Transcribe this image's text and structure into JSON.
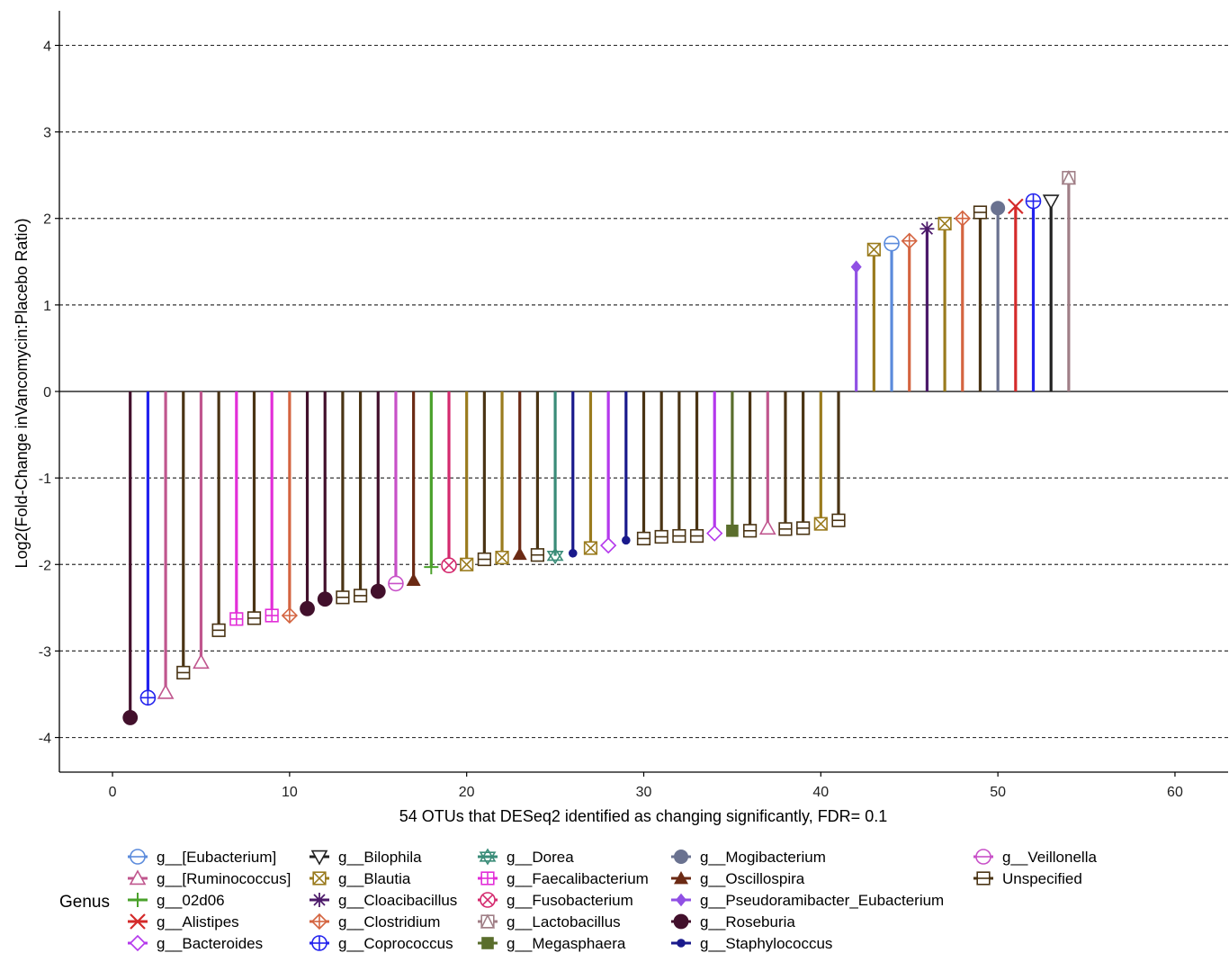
{
  "chart_data": {
    "type": "lollipop",
    "xlabel": "54 OTUs that DESeq2 identified as changing significantly, FDR= 0.1",
    "ylabel": "Log2(Fold-Change inVancomycin:Placebo Ratio)",
    "xlim": [
      -3,
      63
    ],
    "ylim": [
      -4.4,
      4.4
    ],
    "xticks": [
      0,
      10,
      20,
      30,
      40,
      50,
      60
    ],
    "yticks": [
      -4,
      -3,
      -2,
      -1,
      0,
      1,
      2,
      3,
      4
    ],
    "grid": "dashed horizontal",
    "legend_title": "Genus",
    "legend_position": "bottom",
    "genera": [
      {
        "label": "g__[Eubacterium]",
        "color": "#5b8bdc",
        "shape": "circle-minus"
      },
      {
        "label": "g__[Ruminococcus]",
        "color": "#c0568e",
        "shape": "triangle-up-open"
      },
      {
        "label": "g__02d06",
        "color": "#4aa12b",
        "shape": "plus"
      },
      {
        "label": "g__Alistipes",
        "color": "#d42a2a",
        "shape": "cross"
      },
      {
        "label": "g__Bacteroides",
        "color": "#b438ec",
        "shape": "diamond-open"
      },
      {
        "label": "g__Bilophila",
        "color": "#222222",
        "shape": "triangle-down-open"
      },
      {
        "label": "g__Blautia",
        "color": "#9a7b1e",
        "shape": "square-x"
      },
      {
        "label": "g__Cloacibacillus",
        "color": "#4c1a6a",
        "shape": "asterisk"
      },
      {
        "label": "g__Clostridium",
        "color": "#d46440",
        "shape": "diamond-plus"
      },
      {
        "label": "g__Coprococcus",
        "color": "#2222ee",
        "shape": "circle-plus"
      },
      {
        "label": "g__Dorea",
        "color": "#3a8c78",
        "shape": "star-david"
      },
      {
        "label": "g__Faecalibacterium",
        "color": "#e22ed8",
        "shape": "square-plus"
      },
      {
        "label": "g__Fusobacterium",
        "color": "#d42a6e",
        "shape": "circle-x"
      },
      {
        "label": "g__Lactobacillus",
        "color": "#a07e86",
        "shape": "square-triangle"
      },
      {
        "label": "g__Megasphaera",
        "color": "#5a6e2c",
        "shape": "square-filled"
      },
      {
        "label": "g__Mogibacterium",
        "color": "#6a7290",
        "shape": "circle-filled"
      },
      {
        "label": "g__Oscillospira",
        "color": "#6b2a14",
        "shape": "triangle-filled"
      },
      {
        "label": "g__Pseudoramibacter_Eubacterium",
        "color": "#9050e4",
        "shape": "diamond-filled"
      },
      {
        "label": "g__Roseburia",
        "color": "#42102c",
        "shape": "big-dot"
      },
      {
        "label": "g__Staphylococcus",
        "color": "#1a1a8c",
        "shape": "small-dot"
      },
      {
        "label": "g__Veillonella",
        "color": "#c850c8",
        "shape": "circle-minus"
      },
      {
        "label": "Unspecified",
        "color": "#4a3414",
        "shape": "square-minus"
      }
    ],
    "points": [
      {
        "x": 1,
        "y": -3.77,
        "genus": "g__Roseburia"
      },
      {
        "x": 2,
        "y": -3.54,
        "genus": "g__Coprococcus"
      },
      {
        "x": 3,
        "y": -3.48,
        "genus": "g__[Ruminococcus]"
      },
      {
        "x": 4,
        "y": -3.25,
        "genus": "Unspecified"
      },
      {
        "x": 5,
        "y": -3.13,
        "genus": "g__[Ruminococcus]"
      },
      {
        "x": 6,
        "y": -2.76,
        "genus": "Unspecified"
      },
      {
        "x": 7,
        "y": -2.63,
        "genus": "g__Faecalibacterium"
      },
      {
        "x": 8,
        "y": -2.62,
        "genus": "Unspecified"
      },
      {
        "x": 9,
        "y": -2.59,
        "genus": "g__Faecalibacterium"
      },
      {
        "x": 10,
        "y": -2.59,
        "genus": "g__Clostridium"
      },
      {
        "x": 11,
        "y": -2.51,
        "genus": "g__Roseburia"
      },
      {
        "x": 12,
        "y": -2.4,
        "genus": "g__Roseburia"
      },
      {
        "x": 13,
        "y": -2.38,
        "genus": "Unspecified"
      },
      {
        "x": 14,
        "y": -2.36,
        "genus": "Unspecified"
      },
      {
        "x": 15,
        "y": -2.31,
        "genus": "g__Roseburia"
      },
      {
        "x": 16,
        "y": -2.22,
        "genus": "g__Veillonella"
      },
      {
        "x": 17,
        "y": -2.18,
        "genus": "g__Oscillospira"
      },
      {
        "x": 18,
        "y": -2.03,
        "genus": "g__02d06"
      },
      {
        "x": 19,
        "y": -2.01,
        "genus": "g__Fusobacterium"
      },
      {
        "x": 20,
        "y": -2.0,
        "genus": "g__Blautia"
      },
      {
        "x": 21,
        "y": -1.94,
        "genus": "Unspecified"
      },
      {
        "x": 22,
        "y": -1.92,
        "genus": "g__Blautia"
      },
      {
        "x": 23,
        "y": -1.88,
        "genus": "g__Oscillospira"
      },
      {
        "x": 24,
        "y": -1.89,
        "genus": "Unspecified"
      },
      {
        "x": 25,
        "y": -1.9,
        "genus": "g__Dorea"
      },
      {
        "x": 26,
        "y": -1.87,
        "genus": "g__Staphylococcus"
      },
      {
        "x": 27,
        "y": -1.81,
        "genus": "g__Blautia"
      },
      {
        "x": 28,
        "y": -1.78,
        "genus": "g__Bacteroides"
      },
      {
        "x": 29,
        "y": -1.72,
        "genus": "g__Staphylococcus"
      },
      {
        "x": 30,
        "y": -1.7,
        "genus": "Unspecified"
      },
      {
        "x": 31,
        "y": -1.68,
        "genus": "Unspecified"
      },
      {
        "x": 32,
        "y": -1.67,
        "genus": "Unspecified"
      },
      {
        "x": 33,
        "y": -1.67,
        "genus": "Unspecified"
      },
      {
        "x": 34,
        "y": -1.64,
        "genus": "g__Bacteroides"
      },
      {
        "x": 35,
        "y": -1.61,
        "genus": "g__Megasphaera"
      },
      {
        "x": 36,
        "y": -1.61,
        "genus": "Unspecified"
      },
      {
        "x": 37,
        "y": -1.58,
        "genus": "g__[Ruminococcus]"
      },
      {
        "x": 38,
        "y": -1.59,
        "genus": "Unspecified"
      },
      {
        "x": 39,
        "y": -1.58,
        "genus": "Unspecified"
      },
      {
        "x": 40,
        "y": -1.53,
        "genus": "g__Blautia"
      },
      {
        "x": 41,
        "y": -1.49,
        "genus": "Unspecified"
      },
      {
        "x": 42,
        "y": 1.44,
        "genus": "g__Pseudoramibacter_Eubacterium"
      },
      {
        "x": 43,
        "y": 1.64,
        "genus": "g__Blautia"
      },
      {
        "x": 44,
        "y": 1.71,
        "genus": "g__[Eubacterium]"
      },
      {
        "x": 45,
        "y": 1.74,
        "genus": "g__Clostridium"
      },
      {
        "x": 46,
        "y": 1.88,
        "genus": "g__Cloacibacillus"
      },
      {
        "x": 47,
        "y": 1.94,
        "genus": "g__Blautia"
      },
      {
        "x": 48,
        "y": 2.0,
        "genus": "g__Clostridium"
      },
      {
        "x": 49,
        "y": 2.07,
        "genus": "Unspecified"
      },
      {
        "x": 50,
        "y": 2.12,
        "genus": "g__Mogibacterium"
      },
      {
        "x": 51,
        "y": 2.14,
        "genus": "g__Alistipes"
      },
      {
        "x": 52,
        "y": 2.2,
        "genus": "g__Coprococcus"
      },
      {
        "x": 53,
        "y": 2.2,
        "genus": "g__Bilophila"
      },
      {
        "x": 54,
        "y": 2.47,
        "genus": "g__Lactobacillus"
      }
    ]
  }
}
